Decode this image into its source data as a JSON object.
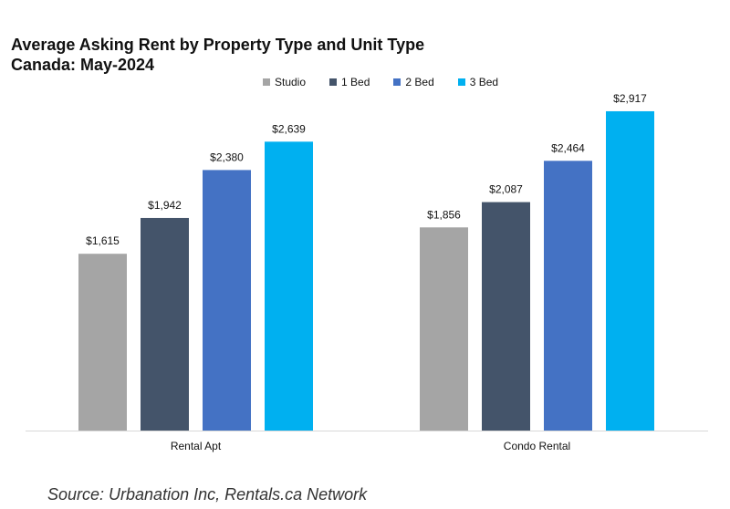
{
  "chart_data": {
    "type": "bar",
    "title_line1": "Average Asking Rent by Property Type and Unit Type",
    "title_line2": "Canada: May-2024",
    "categories": [
      "Rental Apt",
      "Condo Rental"
    ],
    "series": [
      {
        "name": "Studio",
        "color": "#a5a5a5",
        "values": [
          1615,
          1856
        ],
        "labels": [
          "$1,615",
          "$1,856"
        ]
      },
      {
        "name": "1 Bed",
        "color": "#44546a",
        "values": [
          1942,
          2087
        ],
        "labels": [
          "$1,942",
          "$2,087"
        ]
      },
      {
        "name": "2 Bed",
        "color": "#4472c4",
        "values": [
          2380,
          2464
        ],
        "labels": [
          "$2,380",
          "$2,464"
        ]
      },
      {
        "name": "3 Bed",
        "color": "#00b0f0",
        "values": [
          2639,
          2917
        ],
        "labels": [
          "$2,639",
          "$2,917"
        ]
      }
    ],
    "ylim": [
      0,
      3500
    ],
    "legend_position": "top-center",
    "grid": false
  },
  "source": "Source: Urbanation Inc, Rentals.ca Network"
}
